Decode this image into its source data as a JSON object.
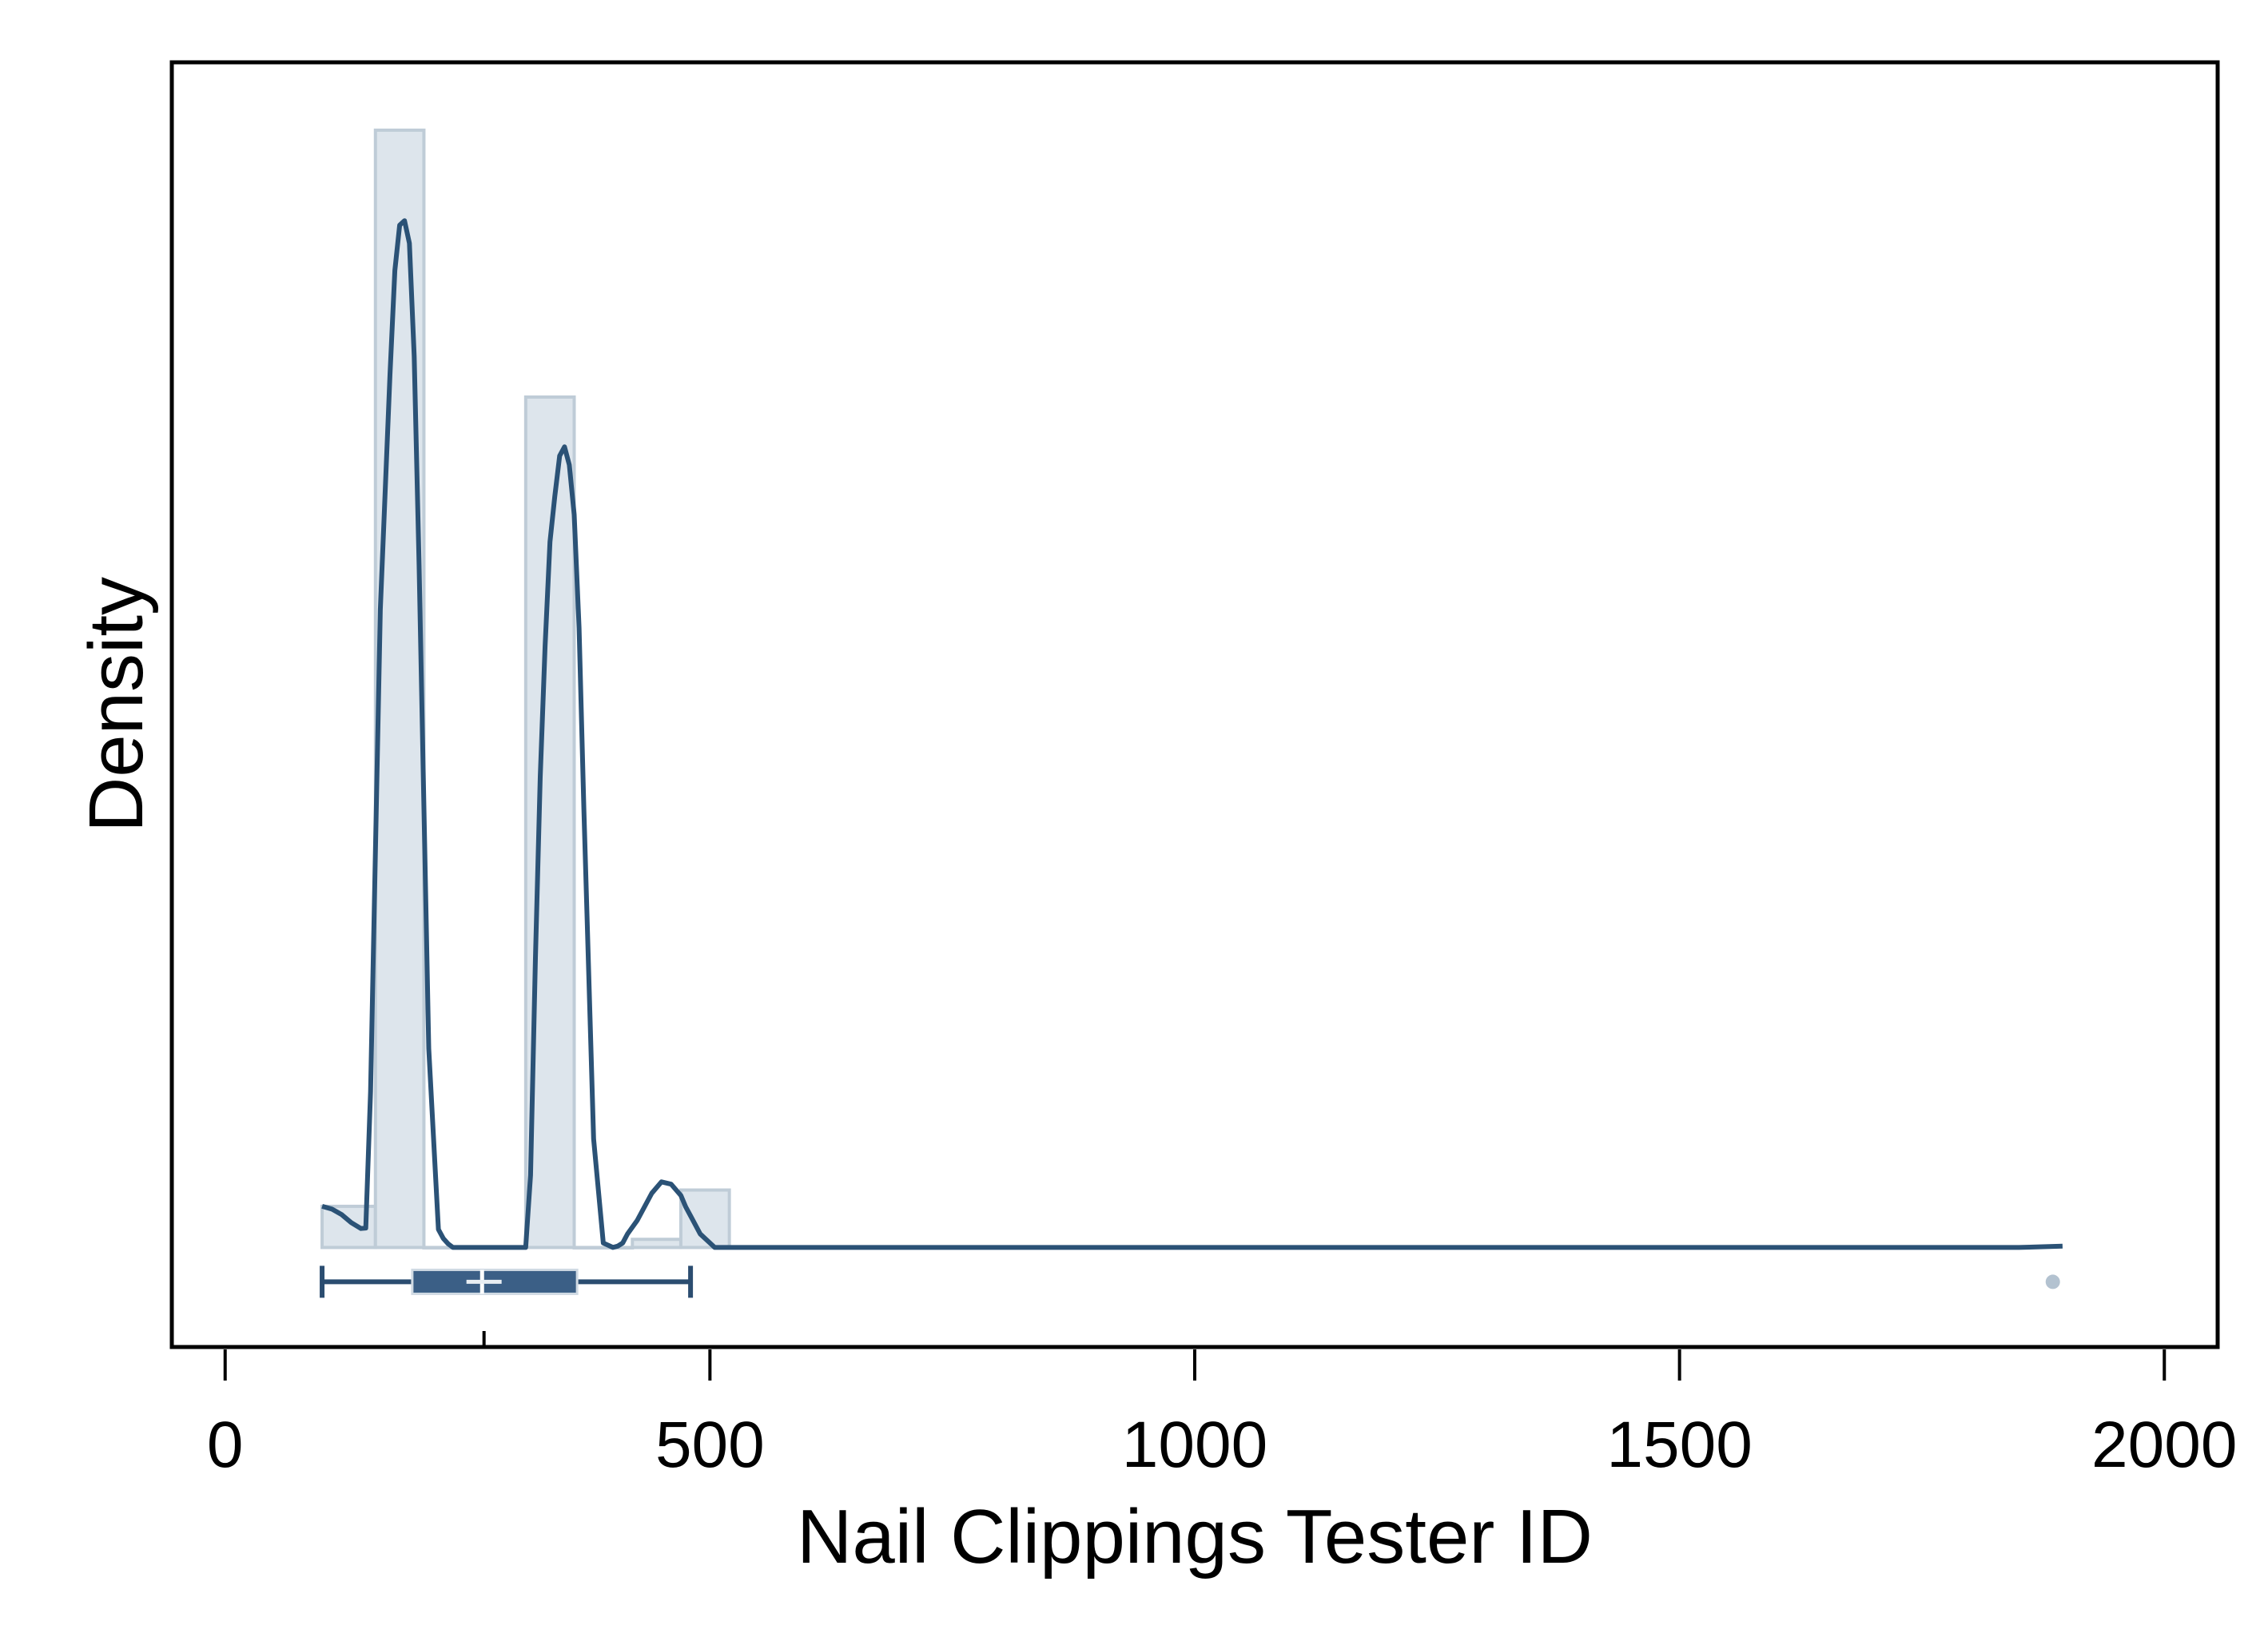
{
  "chart_data": {
    "type": "histogram",
    "xlabel": "Nail Clippings Tester ID",
    "ylabel": "Density",
    "xlim": [
      -55,
      2055
    ],
    "ylim": [
      -0.0022,
      0.0262
    ],
    "x_ticks": [
      0,
      500,
      1000,
      1500,
      2000
    ],
    "x_tick_labels": [
      "0",
      "500",
      "1000",
      "1500",
      "2000"
    ],
    "y_ticks_shown": false,
    "grid": false,
    "legend": "none",
    "histogram": {
      "bins": [
        {
          "x0": 100,
          "x1": 155,
          "density": 0.00091
        },
        {
          "x0": 155,
          "x1": 205,
          "density": 0.0247
        },
        {
          "x0": 205,
          "x1": 310,
          "density": 0
        },
        {
          "x0": 310,
          "x1": 360,
          "density": 0.0188
        },
        {
          "x0": 360,
          "x1": 420,
          "density": 0
        },
        {
          "x0": 420,
          "x1": 470,
          "density": 0.00018
        },
        {
          "x0": 470,
          "x1": 520,
          "density": 0.00127
        }
      ]
    },
    "kde": {
      "x": [
        100,
        110,
        120,
        130,
        140,
        145,
        150,
        160,
        170,
        175,
        180,
        185,
        190,
        195,
        200,
        205,
        210,
        220,
        225,
        230,
        235,
        240,
        250,
        265,
        300,
        310,
        315,
        320,
        325,
        330,
        335,
        340,
        345,
        350,
        355,
        360,
        365,
        370,
        380,
        390,
        400,
        405,
        410,
        415,
        425,
        440,
        450,
        460,
        470,
        475,
        480,
        490,
        500,
        505,
        510,
        515,
        520,
        540,
        600,
        800,
        1000,
        1200,
        1400,
        1600,
        1800,
        1850,
        1895
      ],
      "y": [
        0.00091,
        0.00085,
        0.00073,
        0.00055,
        0.00042,
        0.00043,
        0.00345,
        0.0141,
        0.0193,
        0.0216,
        0.0226,
        0.0227,
        0.0222,
        0.0197,
        0.0151,
        0.0097,
        0.0044,
        0.0004,
        0.0002,
        8e-05,
        0,
        0,
        0,
        0,
        0,
        0,
        0.0016,
        0.0064,
        0.0104,
        0.0133,
        0.0156,
        0.0166,
        0.0175,
        0.0177,
        0.0173,
        0.0162,
        0.0137,
        0.0097,
        0.0024,
        0.0001,
        0,
        3e-05,
        0.0001,
        0.0003,
        0.0006,
        0.0012,
        0.00145,
        0.0014,
        0.00115,
        0.0009,
        0.0007,
        0.0003,
        0.0001,
        0,
        0,
        0,
        0,
        0,
        0,
        0,
        0,
        0,
        0,
        0,
        0,
        0,
        3e-05
      ]
    },
    "boxplot": {
      "whisker_low": 100,
      "q1": 193,
      "median": 265,
      "q3": 363,
      "whisker_high": 480,
      "mean": 267,
      "outliers": [
        1885
      ]
    },
    "colors": {
      "bar_fill": "#dde5ec",
      "bar_edge": "#bfccd7",
      "kde_line": "#2b5276",
      "box_fill": "#3b5f86",
      "whisker": "#2b4d70",
      "outlier": "#b3c2d0",
      "frame": "#000000"
    }
  }
}
